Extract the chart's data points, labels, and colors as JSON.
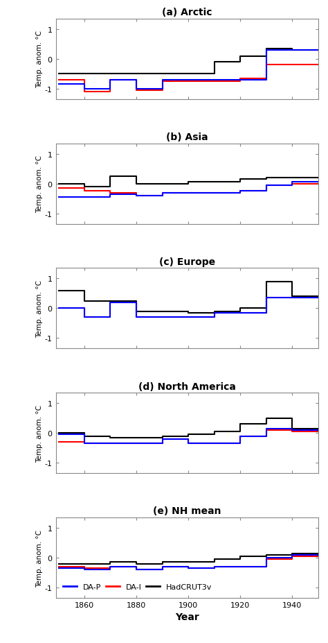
{
  "titles": [
    "(a) Arctic",
    "(b) Asia",
    "(c) Europe",
    "(d) North America",
    "(e) NH mean"
  ],
  "ylabel": "Temp. anom. °C",
  "xlabel": "Year",
  "ylim": [
    -1.35,
    1.35
  ],
  "yticks": [
    -1,
    0,
    1
  ],
  "xticks": [
    1860,
    1880,
    1900,
    1920,
    1940
  ],
  "colors": {
    "DAP": "#0000ff",
    "DAI": "#ff0000",
    "Had": "#000000"
  },
  "legend_labels": [
    "DA-P",
    "DA-I",
    "HadCRUT3v"
  ],
  "decade_starts": [
    1850,
    1860,
    1870,
    1880,
    1890,
    1900,
    1910,
    1920,
    1930,
    1940
  ],
  "end_year": 1950,
  "data": {
    "arctic": {
      "DAP": [
        -0.85,
        -1.0,
        -0.7,
        -1.0,
        -0.7,
        -0.7,
        -0.7,
        -0.7,
        0.3,
        0.3
      ],
      "DAI": [
        -0.7,
        -1.1,
        -0.7,
        -1.05,
        -0.75,
        -0.75,
        -0.75,
        -0.65,
        -0.2,
        -0.2
      ],
      "Had": [
        -0.5,
        -0.5,
        -0.5,
        -0.5,
        -0.5,
        -0.5,
        -0.1,
        0.1,
        0.35,
        0.3
      ]
    },
    "asia": {
      "DAP": [
        -0.45,
        -0.45,
        -0.35,
        -0.4,
        -0.3,
        -0.3,
        -0.3,
        -0.25,
        -0.05,
        0.05
      ],
      "DAI": [
        -0.15,
        -0.25,
        -0.3,
        -0.4,
        -0.3,
        -0.3,
        -0.3,
        -0.25,
        -0.05,
        0.0
      ],
      "Had": [
        0.0,
        -0.1,
        0.25,
        0.0,
        0.0,
        0.05,
        0.05,
        0.15,
        0.2,
        0.2
      ]
    },
    "europe": {
      "DAP": [
        0.0,
        -0.3,
        0.2,
        -0.3,
        -0.3,
        -0.3,
        -0.15,
        -0.15,
        0.35,
        0.35
      ],
      "DAI": [
        0.0,
        -0.3,
        0.2,
        -0.3,
        -0.3,
        -0.3,
        -0.15,
        -0.15,
        0.35,
        0.35
      ],
      "Had": [
        0.6,
        0.25,
        0.25,
        -0.1,
        -0.1,
        -0.15,
        -0.1,
        0.0,
        0.9,
        0.4
      ]
    },
    "namerica": {
      "DAP": [
        -0.05,
        -0.35,
        -0.35,
        -0.35,
        -0.2,
        -0.35,
        -0.35,
        -0.1,
        0.15,
        0.1
      ],
      "DAI": [
        -0.3,
        -0.35,
        -0.35,
        -0.35,
        -0.2,
        -0.35,
        -0.35,
        -0.1,
        0.1,
        0.05
      ],
      "Had": [
        0.0,
        -0.1,
        -0.15,
        -0.15,
        -0.1,
        -0.05,
        0.05,
        0.3,
        0.5,
        0.15
      ]
    },
    "nhmean": {
      "DAP": [
        -0.35,
        -0.4,
        -0.3,
        -0.4,
        -0.3,
        -0.35,
        -0.3,
        -0.3,
        0.0,
        0.1
      ],
      "DAI": [
        -0.3,
        -0.35,
        -0.3,
        -0.4,
        -0.3,
        -0.35,
        -0.3,
        -0.3,
        -0.05,
        0.05
      ],
      "Had": [
        -0.2,
        -0.2,
        -0.15,
        -0.2,
        -0.15,
        -0.15,
        -0.05,
        0.05,
        0.1,
        0.15
      ]
    }
  }
}
